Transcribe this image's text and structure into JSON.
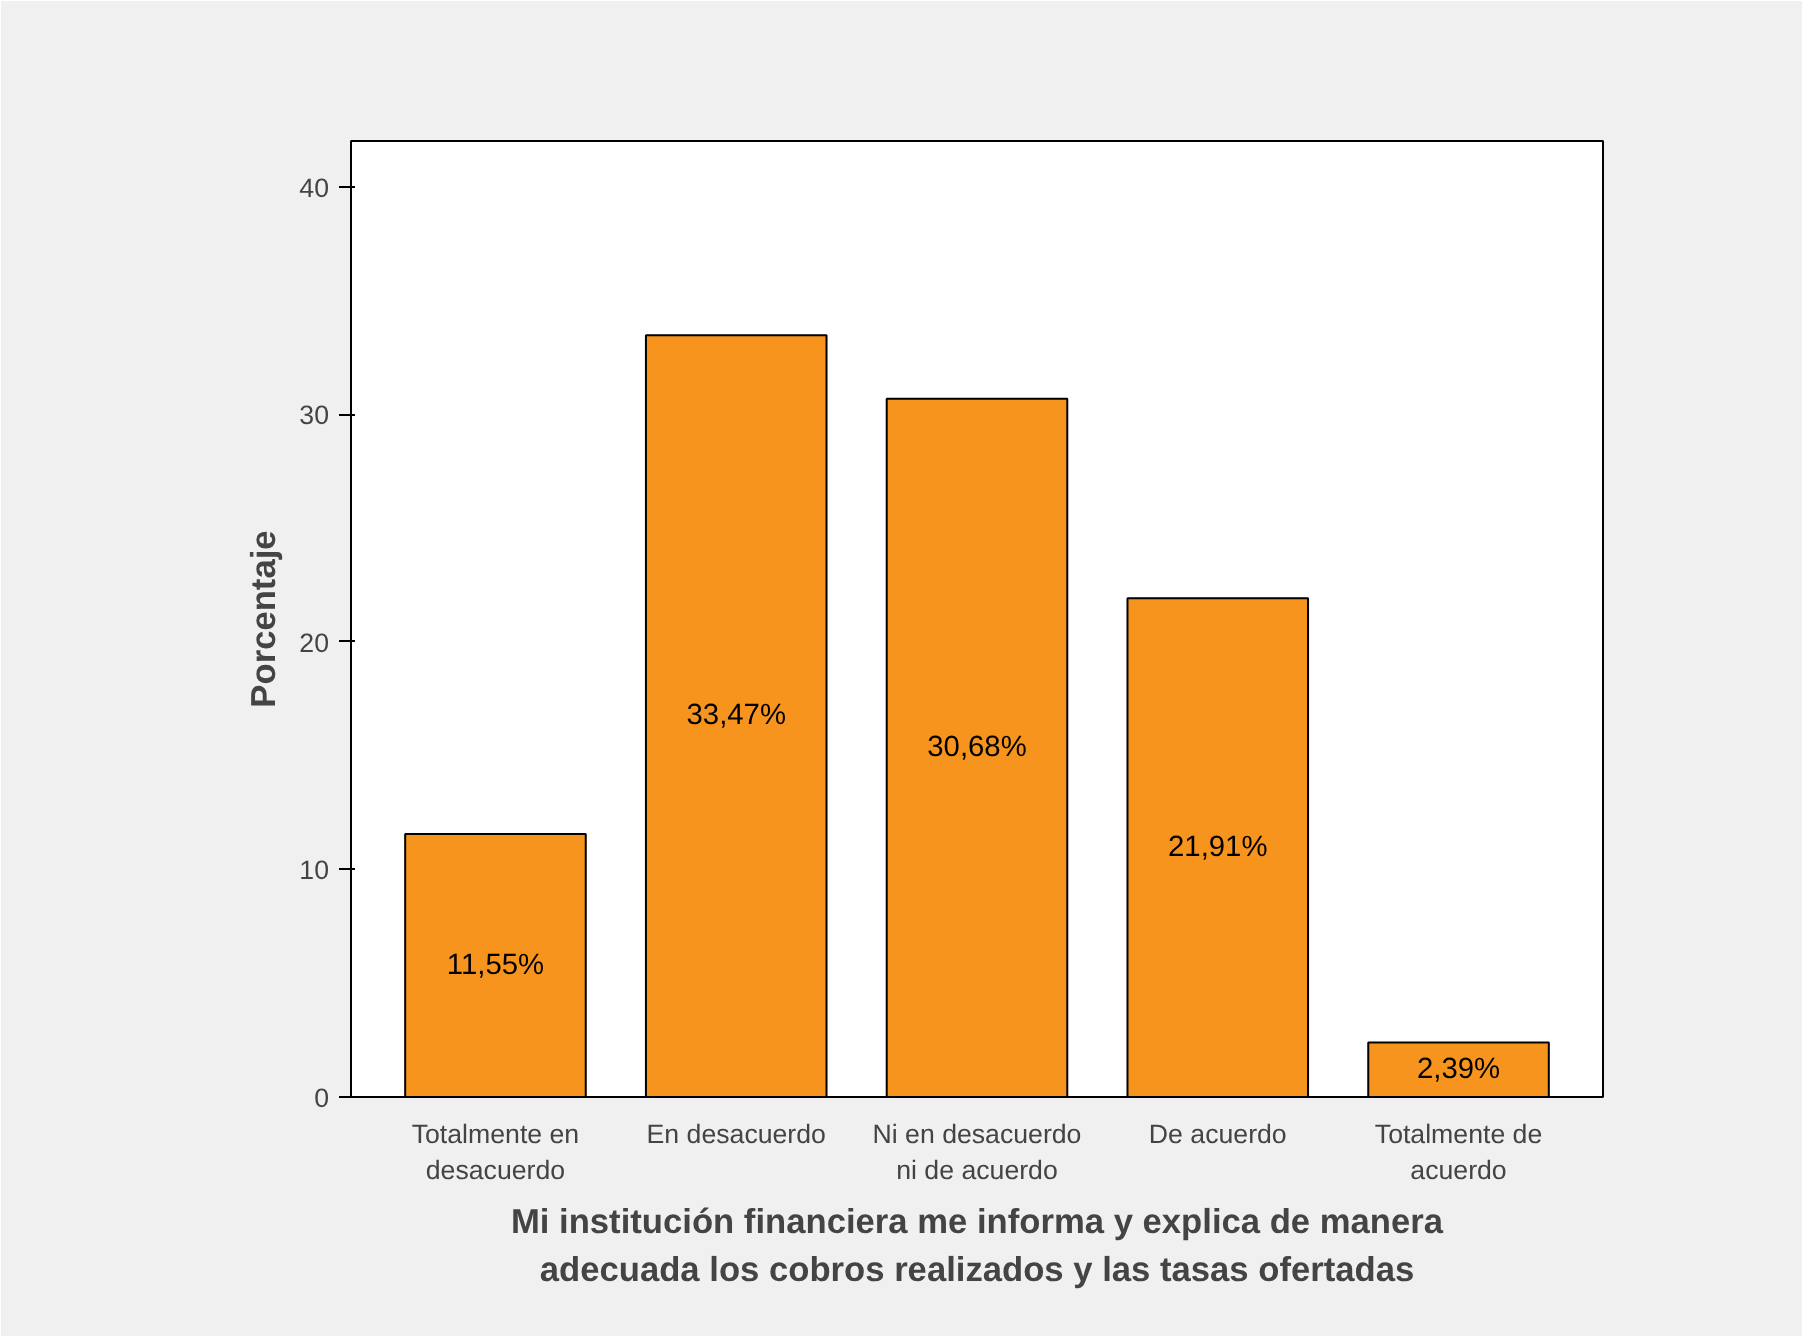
{
  "chart_data": {
    "type": "bar",
    "xlabel": "Mi institución financiera me informa y explica de manera\nadecuada los cobros realizados y las tasas ofertadas",
    "ylabel": "Porcentaje",
    "categories": [
      "Totalmente en\ndesacuerdo",
      "En desacuerdo",
      "Ni en desacuerdo\nni de acuerdo",
      "De acuerdo",
      "Totalmente de\nacuerdo"
    ],
    "values": [
      11.55,
      33.47,
      30.68,
      21.91,
      2.39
    ],
    "value_labels": [
      "11,55%",
      "33,47%",
      "30,68%",
      "21,91%",
      "2,39%"
    ],
    "color": "#f7941d",
    "ylim": [
      0,
      42
    ],
    "yticks": [
      0,
      10,
      20,
      30,
      40
    ],
    "grid": false
  }
}
